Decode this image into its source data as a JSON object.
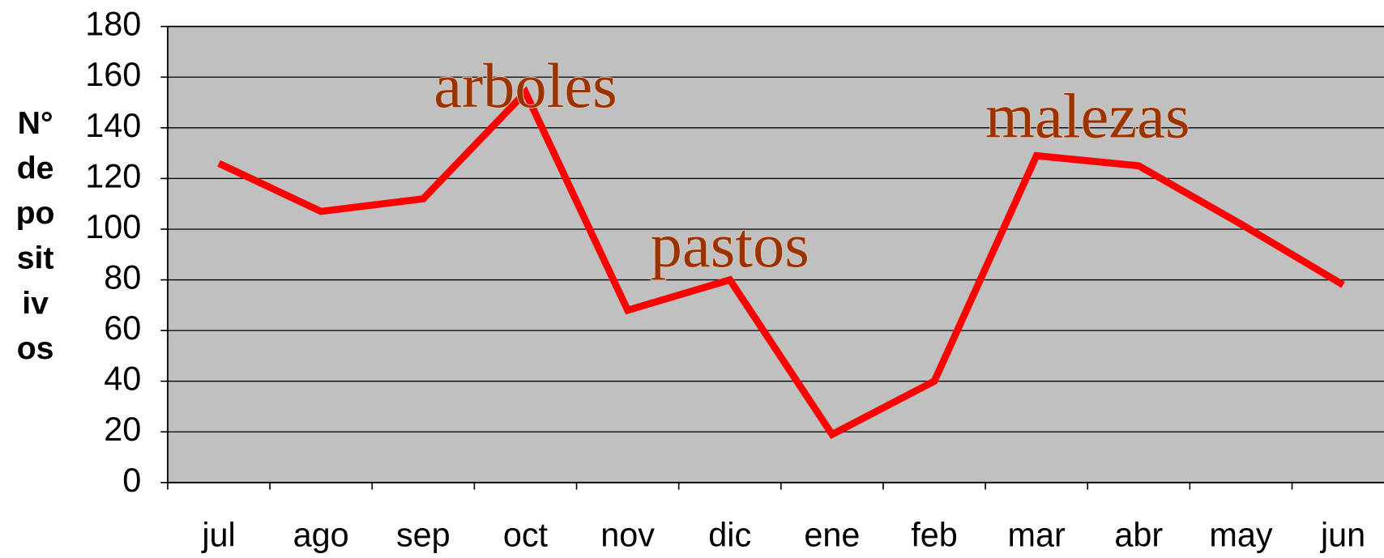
{
  "chart_data": {
    "type": "line",
    "ylabel": [
      "N°",
      "de",
      "po",
      "sit",
      "iv",
      "os"
    ],
    "categories": [
      "jul",
      "ago",
      "sep",
      "oct",
      "nov",
      "dic",
      "ene",
      "feb",
      "mar",
      "abr",
      "may",
      "jun"
    ],
    "series": [
      {
        "color": "#ff0000",
        "values": [
          126,
          107,
          112,
          154,
          68,
          80,
          19,
          40,
          129,
          125,
          102,
          78
        ]
      }
    ],
    "ylim": [
      0,
      180
    ],
    "yticks": [
      0,
      20,
      40,
      60,
      80,
      100,
      120,
      140,
      160,
      180
    ],
    "grid": true,
    "annotations": [
      {
        "text": "arboles",
        "category": 3,
        "value": 154
      },
      {
        "text": "pastos",
        "category": 5,
        "value": 91
      },
      {
        "text": "malezas",
        "category": 8.5,
        "value": 142
      }
    ]
  }
}
